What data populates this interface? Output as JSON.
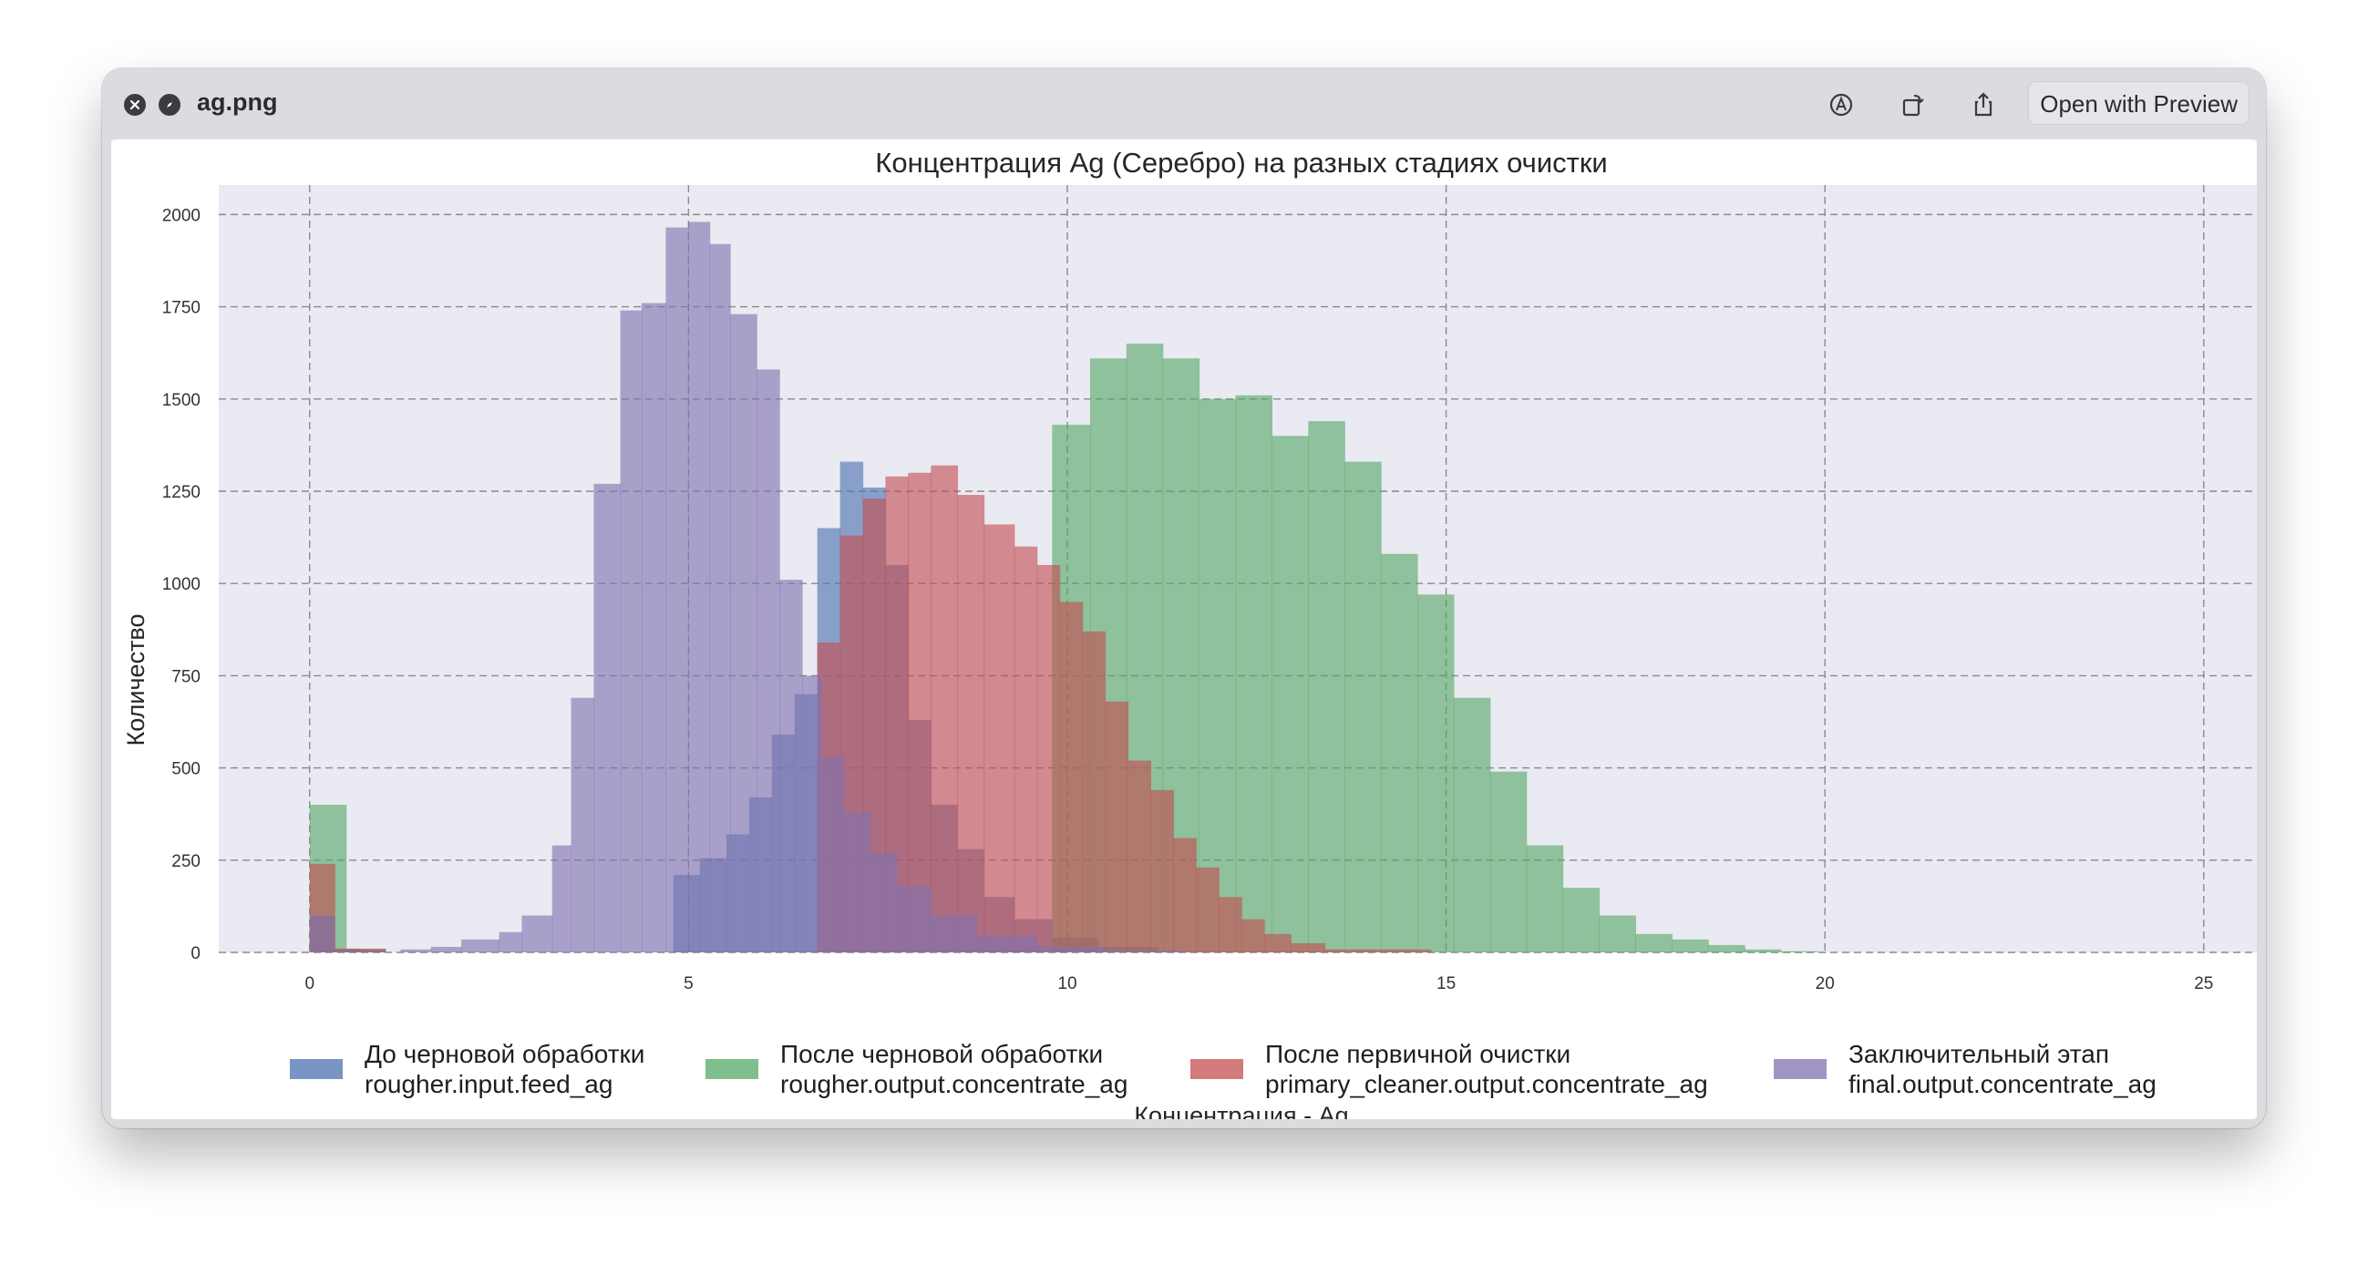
{
  "window": {
    "filename": "ag.png",
    "open_with_label": "Open with Preview",
    "icons": [
      "close-icon",
      "compass-icon",
      "markup-icon",
      "rotate-icon",
      "share-icon",
      "live-text-icon"
    ]
  },
  "chart_data": {
    "type": "bar",
    "title": "Концентрация Ag (Серебро) на разных стадиях очистки",
    "xlabel": "Концентрация - Ag",
    "ylabel": "Количество",
    "xlim": [
      -1.2,
      25.7
    ],
    "ylim": [
      0,
      2080
    ],
    "xticks": [
      "0",
      "5",
      "10",
      "15",
      "20",
      "25"
    ],
    "yticks": [
      "0",
      "250",
      "500",
      "750",
      "1000",
      "1250",
      "1500",
      "1750",
      "2000"
    ],
    "grid": true,
    "legend_position": "bottom",
    "series": [
      {
        "name": "До черновой обработки rougher.input.feed_ag",
        "legend_line1": "До черновой обработки",
        "legend_line2": "rougher.input.feed_ag",
        "color": "#4c72b0",
        "bins": [
          [
            0.0,
            0.33,
            100
          ],
          [
            0.33,
            0.66,
            10
          ],
          [
            0.66,
            1.0,
            5
          ],
          [
            4.8,
            5.15,
            210
          ],
          [
            5.15,
            5.5,
            255
          ],
          [
            5.5,
            5.8,
            320
          ],
          [
            5.8,
            6.1,
            420
          ],
          [
            6.1,
            6.4,
            590
          ],
          [
            6.4,
            6.7,
            700
          ],
          [
            6.7,
            7.0,
            1150
          ],
          [
            7.0,
            7.3,
            1330
          ],
          [
            7.3,
            7.6,
            1260
          ],
          [
            7.6,
            7.9,
            1050
          ],
          [
            7.9,
            8.2,
            630
          ],
          [
            8.2,
            8.55,
            400
          ],
          [
            8.55,
            8.9,
            280
          ],
          [
            8.9,
            9.3,
            150
          ],
          [
            9.3,
            9.8,
            90
          ],
          [
            9.8,
            10.4,
            40
          ],
          [
            10.4,
            11.2,
            15
          ]
        ]
      },
      {
        "name": "После черновой обработки rougher.output.concentrate_ag",
        "legend_line1": "После черновой обработки",
        "legend_line2": "rougher.output.concentrate_ag",
        "color": "#55a868",
        "bins": [
          [
            0.0,
            0.48,
            400
          ],
          [
            0.48,
            1.0,
            10
          ],
          [
            9.8,
            10.3,
            1430
          ],
          [
            10.3,
            10.78,
            1610
          ],
          [
            10.78,
            11.26,
            1650
          ],
          [
            11.26,
            11.74,
            1610
          ],
          [
            11.74,
            12.22,
            1500
          ],
          [
            12.22,
            12.7,
            1510
          ],
          [
            12.7,
            13.18,
            1400
          ],
          [
            13.18,
            13.66,
            1440
          ],
          [
            13.66,
            14.14,
            1330
          ],
          [
            14.14,
            14.62,
            1080
          ],
          [
            14.62,
            15.1,
            970
          ],
          [
            15.1,
            15.58,
            690
          ],
          [
            15.58,
            16.06,
            490
          ],
          [
            16.06,
            16.54,
            290
          ],
          [
            16.54,
            17.02,
            175
          ],
          [
            17.02,
            17.5,
            100
          ],
          [
            17.5,
            17.98,
            50
          ],
          [
            17.98,
            18.46,
            35
          ],
          [
            18.46,
            18.94,
            20
          ],
          [
            18.94,
            19.42,
            8
          ],
          [
            19.42,
            19.9,
            3
          ]
        ]
      },
      {
        "name": "После первичной очистки primary_cleaner.output.concentrate_ag",
        "legend_line1": "После первичной очистки",
        "legend_line2": "primary_cleaner.output.concentrate_ag",
        "color": "#c44e52",
        "bins": [
          [
            0.0,
            0.33,
            240
          ],
          [
            0.33,
            1.0,
            10
          ],
          [
            6.7,
            7.0,
            840
          ],
          [
            7.0,
            7.3,
            1130
          ],
          [
            7.3,
            7.6,
            1230
          ],
          [
            7.6,
            7.9,
            1290
          ],
          [
            7.9,
            8.2,
            1300
          ],
          [
            8.2,
            8.55,
            1320
          ],
          [
            8.55,
            8.9,
            1240
          ],
          [
            8.9,
            9.3,
            1160
          ],
          [
            9.3,
            9.6,
            1100
          ],
          [
            9.6,
            9.9,
            1050
          ],
          [
            9.9,
            10.2,
            950
          ],
          [
            10.2,
            10.5,
            870
          ],
          [
            10.5,
            10.8,
            680
          ],
          [
            10.8,
            11.1,
            520
          ],
          [
            11.1,
            11.4,
            440
          ],
          [
            11.4,
            11.7,
            310
          ],
          [
            11.7,
            12.0,
            230
          ],
          [
            12.0,
            12.3,
            150
          ],
          [
            12.3,
            12.6,
            90
          ],
          [
            12.6,
            12.95,
            50
          ],
          [
            12.95,
            13.4,
            25
          ],
          [
            13.4,
            14.8,
            8
          ]
        ]
      },
      {
        "name": "Заключительный этап final.output.concentrate_ag",
        "legend_line1": "Заключительный этап",
        "legend_line2": "final.output.concentrate_ag",
        "color": "#8172b2",
        "bins": [
          [
            0.0,
            0.32,
            100
          ],
          [
            0.32,
            0.64,
            5
          ],
          [
            0.64,
            1.0,
            3
          ],
          [
            1.2,
            1.6,
            8
          ],
          [
            1.6,
            2.0,
            15
          ],
          [
            2.0,
            2.5,
            35
          ],
          [
            2.5,
            2.8,
            55
          ],
          [
            2.8,
            3.2,
            100
          ],
          [
            3.2,
            3.45,
            290
          ],
          [
            3.45,
            3.75,
            690
          ],
          [
            3.75,
            4.1,
            1270
          ],
          [
            4.1,
            4.38,
            1740
          ],
          [
            4.38,
            4.7,
            1760
          ],
          [
            4.7,
            5.0,
            1965
          ],
          [
            5.0,
            5.28,
            1980
          ],
          [
            5.28,
            5.55,
            1920
          ],
          [
            5.55,
            5.9,
            1730
          ],
          [
            5.9,
            6.2,
            1580
          ],
          [
            6.2,
            6.5,
            1010
          ],
          [
            6.5,
            6.75,
            750
          ],
          [
            6.75,
            7.05,
            530
          ],
          [
            7.05,
            7.4,
            380
          ],
          [
            7.4,
            7.75,
            270
          ],
          [
            7.75,
            8.2,
            180
          ],
          [
            8.2,
            8.8,
            100
          ],
          [
            8.8,
            9.6,
            45
          ],
          [
            9.6,
            10.5,
            15
          ],
          [
            10.5,
            11.5,
            5
          ]
        ]
      }
    ]
  }
}
